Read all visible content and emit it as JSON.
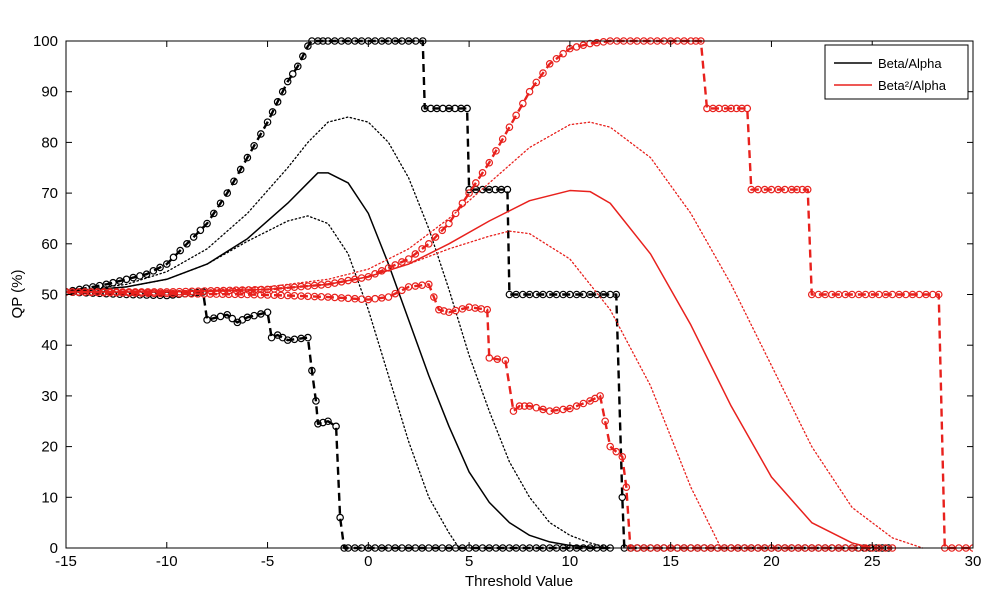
{
  "chart_data": {
    "type": "line",
    "xlabel": "Threshold Value",
    "ylabel": "QP (%)",
    "xlim": [
      -15,
      30
    ],
    "ylim": [
      0,
      100
    ],
    "xticks": [
      -15,
      -10,
      -5,
      0,
      5,
      10,
      15,
      20,
      25,
      30
    ],
    "yticks": [
      0,
      10,
      20,
      30,
      40,
      50,
      60,
      70,
      80,
      90,
      100
    ],
    "grid": false,
    "legend_position": "top-right",
    "legend": [
      {
        "label": "Beta/Alpha",
        "color": "#000000"
      },
      {
        "label": "Beta²/Alpha",
        "color": "#e8211d"
      }
    ],
    "series": [
      {
        "group": "Beta/Alpha",
        "color": "#000000",
        "style": "solid",
        "x": [
          -15,
          -12,
          -10,
          -8,
          -6,
          -4,
          -3,
          -2.5,
          -2,
          -1,
          0,
          1,
          2,
          3,
          4,
          5,
          6,
          7,
          8,
          9,
          10,
          11,
          12
        ],
        "y": [
          50.5,
          51.5,
          53,
          56,
          61,
          68,
          72,
          74,
          74,
          72,
          66,
          56,
          45,
          34,
          24,
          15,
          9,
          5,
          2.5,
          1.2,
          0.5,
          0.2,
          0
        ]
      },
      {
        "group": "Beta/Alpha",
        "color": "#000000",
        "style": "dotted",
        "x": [
          -15,
          -12,
          -10,
          -8,
          -6,
          -4,
          -3,
          -2,
          -1,
          0,
          1,
          2,
          3,
          4,
          5,
          6,
          7,
          8,
          9,
          10,
          11,
          12
        ],
        "y": [
          50.5,
          52,
          54.5,
          59,
          66,
          75,
          80,
          84,
          85,
          84,
          80,
          73,
          63,
          51,
          38,
          27,
          17,
          10,
          5,
          2.5,
          1,
          0
        ]
      },
      {
        "group": "Beta/Alpha",
        "color": "#000000",
        "style": "dotted",
        "x": [
          -15,
          -12,
          -10,
          -8,
          -6,
          -4,
          -3,
          -2,
          -1,
          0,
          1,
          2,
          3,
          4,
          4.5
        ],
        "y": [
          50.5,
          51.5,
          53,
          56,
          60.5,
          64.5,
          65.5,
          64,
          58,
          47,
          34,
          21,
          10,
          3,
          0
        ]
      },
      {
        "group": "Beta/Alpha",
        "color": "#000000",
        "style": "dashed-markers",
        "x": [
          -15,
          -13,
          -11,
          -10,
          -9,
          -8,
          -7,
          -6,
          -5,
          -4.5,
          -4,
          -3.5,
          -3,
          -2.8,
          -2.5,
          -2,
          -1,
          0,
          1,
          2,
          2.7,
          2.8,
          4,
          4.9,
          5,
          6,
          6.9,
          7,
          8,
          9,
          10,
          11,
          12,
          12.3,
          12.6,
          12.7,
          14,
          16,
          18,
          20,
          22,
          24,
          25.8
        ],
        "y": [
          50.5,
          52,
          54,
          56,
          60,
          64,
          70,
          77,
          84,
          88,
          92,
          95,
          99,
          100,
          100,
          100,
          100,
          100,
          100,
          100,
          100,
          86.7,
          86.7,
          86.7,
          70.7,
          70.7,
          70.7,
          50,
          50,
          50,
          50,
          50,
          50,
          50,
          10,
          0,
          0,
          0,
          0,
          0,
          0,
          0,
          0
        ]
      },
      {
        "group": "Beta/Alpha",
        "color": "#000000",
        "style": "dashed-markers",
        "x": [
          -15,
          -12,
          -10,
          -8.2,
          -8,
          -7,
          -6.5,
          -6,
          -5,
          -4.8,
          -4.5,
          -4,
          -3,
          -2.8,
          -2.6,
          -2.5,
          -2,
          -1.6,
          -1.4,
          -1.2,
          -1,
          0,
          2,
          4,
          6,
          8,
          10,
          12
        ],
        "y": [
          50.5,
          50,
          49.8,
          50.5,
          45,
          46,
          44.5,
          45.5,
          46.5,
          41.5,
          42,
          41,
          41.5,
          35,
          29,
          24.5,
          25,
          24,
          6,
          0,
          0,
          0,
          0,
          0,
          0,
          0,
          0,
          0
        ]
      },
      {
        "group": "Beta²/Alpha",
        "color": "#e8211d",
        "style": "solid",
        "x": [
          -15,
          -10,
          -5,
          -2,
          0,
          2,
          4,
          6,
          8,
          10,
          11,
          12,
          14,
          16,
          18,
          20,
          22,
          24,
          25
        ],
        "y": [
          50.5,
          50.5,
          51,
          52,
          53.5,
          56,
          60,
          64.5,
          68.5,
          70.5,
          70.3,
          68,
          58,
          44,
          28,
          14,
          5,
          1,
          0
        ]
      },
      {
        "group": "Beta²/Alpha",
        "color": "#e8211d",
        "style": "dotted",
        "x": [
          -15,
          -10,
          -5,
          -2,
          0,
          2,
          4,
          6,
          8,
          10,
          11,
          12,
          14,
          16,
          18,
          20,
          22,
          24,
          26,
          27.5
        ],
        "y": [
          50.5,
          50.5,
          51.5,
          53,
          55,
          59,
          65,
          72,
          79,
          83.5,
          84,
          83,
          77,
          66,
          52,
          36,
          20,
          8,
          2,
          0
        ]
      },
      {
        "group": "Beta²/Alpha",
        "color": "#e8211d",
        "style": "dotted",
        "x": [
          -15,
          -10,
          -5,
          -2,
          0,
          2,
          4,
          6,
          7,
          8,
          10,
          12,
          14,
          15,
          16,
          17,
          17.5
        ],
        "y": [
          50.5,
          50.5,
          51,
          52,
          53.5,
          56,
          59,
          61.5,
          62.5,
          62,
          57,
          47,
          32,
          22,
          12,
          4,
          0
        ]
      },
      {
        "group": "Beta²/Alpha",
        "color": "#e8211d",
        "style": "dashed-markers",
        "x": [
          -15,
          -10,
          -5,
          -2,
          0,
          2,
          3,
          4,
          5,
          6,
          7,
          8,
          9,
          10,
          11,
          12,
          13,
          14,
          15,
          16,
          16.5,
          16.8,
          18,
          18.8,
          19,
          20,
          21,
          21.8,
          22,
          24,
          26,
          28,
          28.3,
          28.6,
          30
        ],
        "y": [
          50.5,
          50.5,
          51,
          52,
          53.5,
          57,
          60,
          64,
          70,
          76,
          83,
          90,
          95.5,
          98.5,
          99.5,
          100,
          100,
          100,
          100,
          100,
          100,
          86.7,
          86.7,
          86.7,
          70.7,
          70.7,
          70.7,
          70.7,
          50,
          50,
          50,
          50,
          50,
          0,
          0
        ]
      },
      {
        "group": "Beta²/Alpha",
        "color": "#e8211d",
        "style": "dashed-markers",
        "x": [
          -15,
          -10,
          -6,
          -4,
          -2,
          0,
          1,
          2,
          3,
          3.5,
          4,
          5,
          5.9,
          6,
          6.8,
          7.2,
          7.5,
          8,
          9,
          10,
          11,
          11.5,
          12,
          12.6,
          12.8,
          13,
          14,
          16,
          18,
          20,
          22,
          24,
          26
        ],
        "y": [
          50.5,
          50.2,
          50,
          49.8,
          49.5,
          49,
          49.5,
          51.5,
          52,
          47,
          46.5,
          47.5,
          47,
          37.5,
          37,
          27,
          28,
          28,
          27,
          27.5,
          29,
          30,
          20,
          18,
          12,
          0,
          0,
          0,
          0,
          0,
          0,
          0,
          0
        ]
      }
    ]
  }
}
